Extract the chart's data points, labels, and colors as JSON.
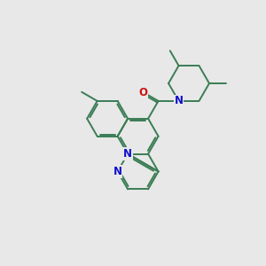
{
  "background_color": "#e8e8e8",
  "bond_color": "#3a7d54",
  "bond_width": 1.4,
  "atom_colors": {
    "N": "#1010cc",
    "O": "#cc1010"
  },
  "figsize": [
    3.0,
    3.0
  ],
  "dpi": 100,
  "bl": 0.78
}
